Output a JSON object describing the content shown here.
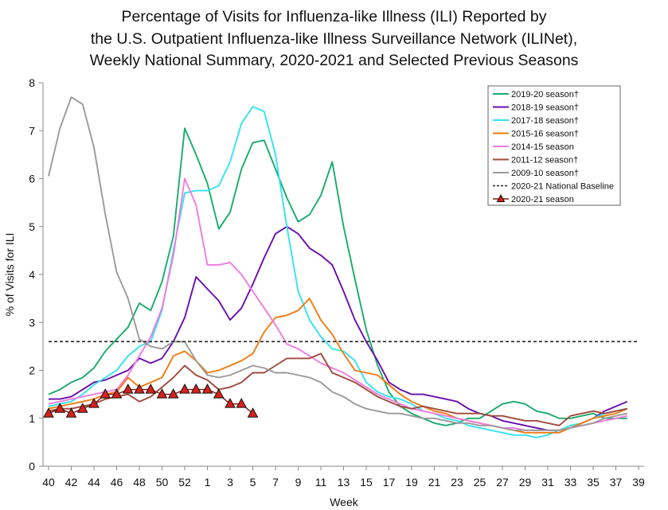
{
  "chart_data": {
    "type": "line",
    "title_lines": [
      "Percentage of Visits for Influenza-like Illness (ILI) Reported by",
      "the U.S. Outpatient Influenza-like Illness Surveillance Network (ILINet),",
      "Weekly National Summary, 2020-2021 and Selected Previous Seasons"
    ],
    "xlabel": "Week",
    "ylabel": "% of Visits for ILI",
    "ylim": [
      0,
      8
    ],
    "yticks": [
      "0",
      "1",
      "2",
      "3",
      "4",
      "5",
      "6",
      "7",
      "8"
    ],
    "x_tick_labels": [
      "40",
      "42",
      "44",
      "46",
      "48",
      "50",
      "52",
      "1",
      "3",
      "5",
      "7",
      "9",
      "11",
      "13",
      "15",
      "17",
      "19",
      "21",
      "23",
      "25",
      "27",
      "29",
      "31",
      "33",
      "35",
      "37",
      "39"
    ],
    "grid": false,
    "legend_position": "top-right",
    "series": [
      {
        "name": "2019-20 season†",
        "color": "#1aaa6e",
        "values": [
          1.5,
          1.6,
          1.75,
          1.85,
          2.05,
          2.4,
          2.65,
          2.9,
          3.4,
          3.25,
          3.85,
          4.8,
          7.05,
          6.5,
          5.9,
          4.95,
          5.3,
          6.2,
          6.75,
          6.8,
          6.2,
          5.6,
          5.1,
          5.25,
          5.65,
          6.35,
          5.0,
          3.9,
          2.85,
          2.1,
          1.55,
          1.25,
          1.1,
          1.0,
          0.9,
          0.85,
          0.9,
          1.0,
          1.0,
          1.15,
          1.3,
          1.35,
          1.3,
          1.15,
          1.1,
          1.0,
          1.0,
          1.05,
          1.1,
          1.0,
          1.0,
          1.0
        ]
      },
      {
        "name": "2018-19 season†",
        "color": "#6a0dad",
        "values": [
          1.4,
          1.4,
          1.45,
          1.6,
          1.75,
          1.8,
          1.9,
          2.0,
          2.25,
          2.15,
          2.25,
          2.6,
          3.1,
          3.95,
          3.7,
          3.45,
          3.05,
          3.3,
          3.8,
          4.35,
          4.85,
          5.0,
          4.85,
          4.55,
          4.4,
          4.2,
          3.65,
          3.05,
          2.6,
          2.2,
          1.75,
          1.6,
          1.5,
          1.5,
          1.45,
          1.4,
          1.35,
          1.2,
          1.1,
          1.05,
          0.95,
          0.9,
          0.85,
          0.8,
          0.75,
          0.75,
          0.8,
          0.9,
          1.0,
          1.15,
          1.25,
          1.35
        ]
      },
      {
        "name": "2017-18 season†",
        "color": "#33e3f0",
        "values": [
          1.25,
          1.3,
          1.35,
          1.5,
          1.7,
          1.85,
          2.0,
          2.3,
          2.5,
          2.6,
          3.25,
          4.5,
          5.7,
          5.75,
          5.75,
          5.85,
          6.35,
          7.15,
          7.5,
          7.4,
          6.5,
          5.0,
          3.65,
          3.05,
          2.7,
          2.45,
          2.4,
          2.2,
          1.75,
          1.55,
          1.45,
          1.4,
          1.3,
          1.15,
          1.1,
          1.0,
          0.95,
          0.85,
          0.8,
          0.75,
          0.7,
          0.65,
          0.65,
          0.6,
          0.65,
          0.75,
          0.85,
          0.9,
          1.0,
          1.1,
          1.15,
          1.2
        ]
      },
      {
        "name": "2015-16 season†",
        "color": "#f07b10",
        "values": [
          1.2,
          1.25,
          1.3,
          1.35,
          1.4,
          1.5,
          1.55,
          1.85,
          1.65,
          1.75,
          1.85,
          2.3,
          2.4,
          2.2,
          1.95,
          2.0,
          2.1,
          2.2,
          2.35,
          2.8,
          3.1,
          3.15,
          3.25,
          3.5,
          3.05,
          2.75,
          2.35,
          2.0,
          1.95,
          1.9,
          1.7,
          1.5,
          1.35,
          1.25,
          1.15,
          1.1,
          1.0,
          0.95,
          0.9,
          0.85,
          0.8,
          0.75,
          0.7,
          0.7,
          0.7,
          0.7,
          0.8,
          0.9,
          1.0,
          1.05,
          1.1,
          1.2
        ]
      },
      {
        "name": "2014-15 season",
        "color": "#f07be0",
        "values": [
          1.3,
          1.35,
          1.4,
          1.45,
          1.5,
          1.55,
          1.6,
          1.9,
          2.3,
          2.7,
          3.3,
          4.4,
          6.0,
          5.45,
          4.2,
          4.2,
          4.25,
          4.0,
          3.65,
          3.3,
          2.95,
          2.55,
          2.45,
          2.3,
          2.15,
          2.05,
          1.95,
          1.8,
          1.65,
          1.5,
          1.4,
          1.3,
          1.2,
          1.15,
          1.1,
          1.05,
          1.0,
          0.95,
          0.9,
          0.85,
          0.8,
          0.8,
          0.75,
          0.75,
          0.75,
          0.75,
          0.8,
          0.85,
          0.9,
          0.95,
          1.0,
          1.05
        ]
      },
      {
        "name": "2011-12 season†",
        "color": "#a04a3c",
        "values": [
          1.15,
          1.2,
          1.2,
          1.25,
          1.3,
          1.4,
          1.45,
          1.5,
          1.35,
          1.45,
          1.65,
          1.85,
          2.1,
          1.9,
          1.8,
          1.6,
          1.65,
          1.75,
          1.95,
          1.95,
          2.1,
          2.25,
          2.25,
          2.25,
          2.35,
          1.95,
          1.85,
          1.75,
          1.6,
          1.45,
          1.35,
          1.25,
          1.2,
          1.25,
          1.2,
          1.15,
          1.1,
          1.1,
          1.1,
          1.05,
          1.05,
          1.0,
          0.95,
          0.95,
          0.9,
          0.85,
          1.05,
          1.1,
          1.15,
          1.1,
          1.15,
          1.2
        ]
      },
      {
        "name": "2009-10 season†",
        "color": "#9a9a9a",
        "values": [
          6.05,
          7.05,
          7.7,
          7.55,
          6.65,
          5.25,
          4.05,
          3.5,
          2.65,
          2.5,
          2.45,
          2.6,
          2.6,
          2.2,
          1.9,
          1.85,
          1.9,
          2.0,
          2.1,
          2.05,
          1.95,
          1.95,
          1.9,
          1.85,
          1.75,
          1.55,
          1.45,
          1.3,
          1.2,
          1.15,
          1.1,
          1.1,
          1.05,
          1.0,
          1.0,
          0.95,
          0.9,
          0.9,
          0.85,
          0.85,
          0.8,
          0.75,
          0.75,
          0.75,
          0.75,
          0.75,
          0.8,
          0.85,
          0.9,
          1.0,
          1.05,
          1.1
        ]
      },
      {
        "name": "2020-21 National Baseline",
        "color": "#222222",
        "dashed": true,
        "constant": 2.6
      },
      {
        "name": "2020-21 season",
        "color": "#7a1a14",
        "marker_fill": "#d8201b",
        "marker": "triangle",
        "values": [
          1.1,
          1.2,
          1.1,
          1.2,
          1.3,
          1.5,
          1.5,
          1.6,
          1.6,
          1.6,
          1.5,
          1.5,
          1.6,
          1.6,
          1.6,
          1.5,
          1.3,
          1.3,
          1.1
        ]
      }
    ]
  }
}
